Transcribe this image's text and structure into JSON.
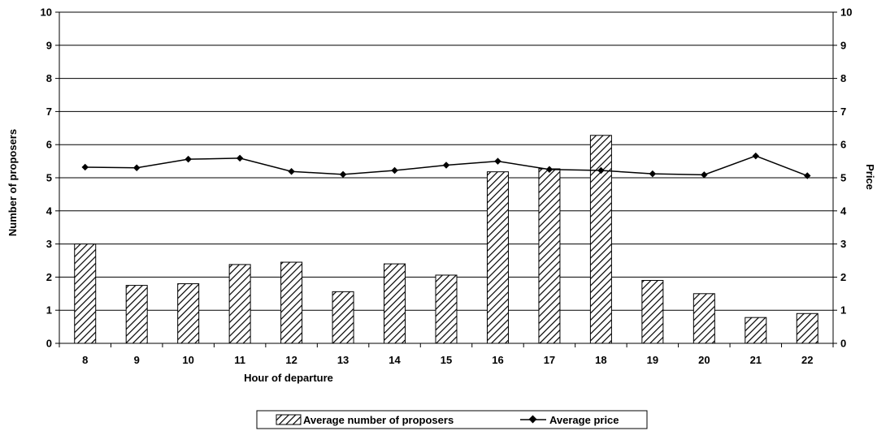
{
  "chart_data": {
    "type": "bar",
    "categories": [
      "8",
      "9",
      "10",
      "11",
      "12",
      "13",
      "14",
      "15",
      "16",
      "17",
      "18",
      "19",
      "20",
      "21",
      "22"
    ],
    "series": [
      {
        "name": "Average number of proposers",
        "type": "bar",
        "axis": "left",
        "values": [
          3.0,
          1.75,
          1.8,
          2.38,
          2.45,
          1.56,
          2.4,
          2.06,
          5.18,
          5.27,
          6.28,
          1.9,
          1.5,
          0.78,
          0.9
        ]
      },
      {
        "name": "Average price",
        "type": "line",
        "axis": "right",
        "values": [
          5.32,
          5.3,
          5.56,
          5.59,
          5.19,
          5.1,
          5.22,
          5.38,
          5.5,
          5.25,
          5.22,
          5.12,
          5.09,
          5.66,
          5.06
        ]
      }
    ],
    "xlabel": "Hour of departure",
    "ylabel": "Number of proposers",
    "y2label": "Price",
    "ylim": [
      0,
      10
    ],
    "y2lim": [
      0,
      10
    ],
    "yticks": [
      "0",
      "1",
      "2",
      "3",
      "4",
      "5",
      "6",
      "7",
      "8",
      "9",
      "10"
    ],
    "y2ticks": [
      "0",
      "1",
      "2",
      "3",
      "4",
      "5",
      "6",
      "7",
      "8",
      "9",
      "10"
    ],
    "grid": true,
    "legend": "bottom-center",
    "colors": {
      "line": "#000000",
      "bar_fill": "#ffffff",
      "bar_hatch": "#000000",
      "grid": "#000000"
    }
  }
}
